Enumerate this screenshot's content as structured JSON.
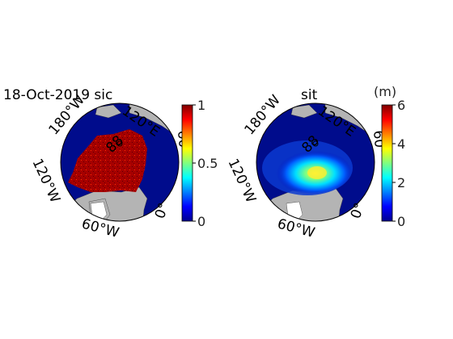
{
  "maps": [
    {
      "title": "18-Oct-2019 sic",
      "lon_labels": [
        "180°W",
        "120°E",
        "120°W",
        "60°W",
        "0°",
        "60°"
      ],
      "lat_label": "88",
      "colorbar": {
        "ticks": [
          "0",
          "0.5",
          "1"
        ],
        "unit": ""
      }
    },
    {
      "title": "sit",
      "lon_labels": [
        "180°W",
        "120°E",
        "120°W",
        "60°W",
        "0°",
        "60°"
      ],
      "lat_label": "88",
      "colorbar": {
        "ticks": [
          "0",
          "2",
          "4",
          "6"
        ],
        "unit": "(m)"
      }
    }
  ],
  "colors": {
    "ocean": "#000c8c",
    "land": "#b4b4b4",
    "ice_high": "#9a0000",
    "colormap": [
      "#00008f",
      "#0000ff",
      "#0080ff",
      "#00ffff",
      "#80ff80",
      "#ffff00",
      "#ff8000",
      "#ff0000",
      "#800000"
    ]
  }
}
